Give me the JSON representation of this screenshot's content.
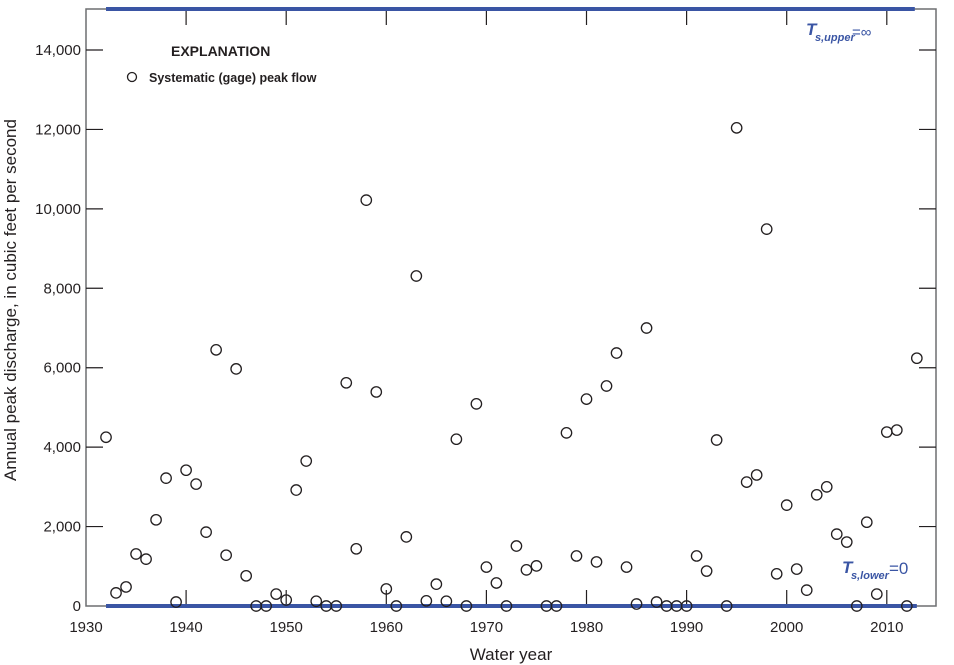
{
  "chart_data": {
    "type": "scatter",
    "title": "",
    "xlabel": "Water year",
    "ylabel": "Annual peak discharge, in cubic feet per second",
    "xlim": [
      1930,
      2015
    ],
    "ylim": [
      0,
      15000
    ],
    "xticks": [
      "1930",
      "1940",
      "1950",
      "1960",
      "1970",
      "1980",
      "1990",
      "2000",
      "2010"
    ],
    "yticks": [
      "0",
      "2,000",
      "4,000",
      "6,000",
      "8,000",
      "10,000",
      "12,000",
      "14,000"
    ],
    "legend": {
      "title": "EXPLANATION",
      "placement": "top-left",
      "entries": [
        "Systematic (gage) peak flow"
      ]
    },
    "annotations": {
      "upper": {
        "T": "T",
        "sub": "s,upper",
        "eq": "=∞"
      },
      "lower": {
        "T": "T",
        "sub": "s,lower",
        "eq": "=0"
      }
    },
    "thresholds": {
      "upper_line_value": 15000,
      "upper_range": [
        1932,
        2010
      ],
      "lower_line_value": 0,
      "lower_range": [
        1932,
        2013
      ]
    },
    "colors": {
      "threshold": "#3a55a4",
      "points": "#231f20",
      "axis": "#6d6e71"
    },
    "series": [
      {
        "name": "Systematic (gage) peak flow",
        "x": [
          1932,
          1933,
          1934,
          1935,
          1936,
          1937,
          1938,
          1939,
          1940,
          1941,
          1942,
          1943,
          1944,
          1945,
          1946,
          1947,
          1948,
          1949,
          1950,
          1951,
          1952,
          1953,
          1954,
          1955,
          1956,
          1957,
          1958,
          1959,
          1960,
          1961,
          1962,
          1963,
          1964,
          1965,
          1966,
          1967,
          1968,
          1969,
          1970,
          1971,
          1972,
          1973,
          1974,
          1975,
          1976,
          1977,
          1978,
          1979,
          1980,
          1981,
          1982,
          1983,
          1984,
          1985,
          1986,
          1987,
          1988,
          1989,
          1990,
          1991,
          1992,
          1993,
          1994,
          1995,
          1996,
          1997,
          1998,
          1999,
          2000,
          2001,
          2002,
          2003,
          2004,
          2005,
          2006,
          2007,
          2008,
          2009,
          2010,
          2011,
          2012,
          2013
        ],
        "y": [
          4250,
          330,
          480,
          1310,
          1180,
          2170,
          3220,
          100,
          3420,
          3070,
          1860,
          6450,
          1280,
          5970,
          760,
          0,
          0,
          300,
          150,
          2920,
          3650,
          120,
          0,
          0,
          5620,
          1440,
          10220,
          5390,
          430,
          0,
          1740,
          8310,
          130,
          550,
          120,
          4200,
          0,
          5090,
          980,
          580,
          0,
          1510,
          910,
          1010,
          0,
          0,
          4360,
          1260,
          5210,
          1110,
          5540,
          6370,
          980,
          50,
          7000,
          100,
          0,
          0,
          0,
          1260,
          880,
          4180,
          0,
          12040,
          3120,
          3300,
          9490,
          810,
          2540,
          930,
          400,
          2800,
          3000,
          1810,
          1610,
          0,
          2110,
          300,
          4380,
          4430,
          0,
          6240
        ]
      }
    ]
  }
}
